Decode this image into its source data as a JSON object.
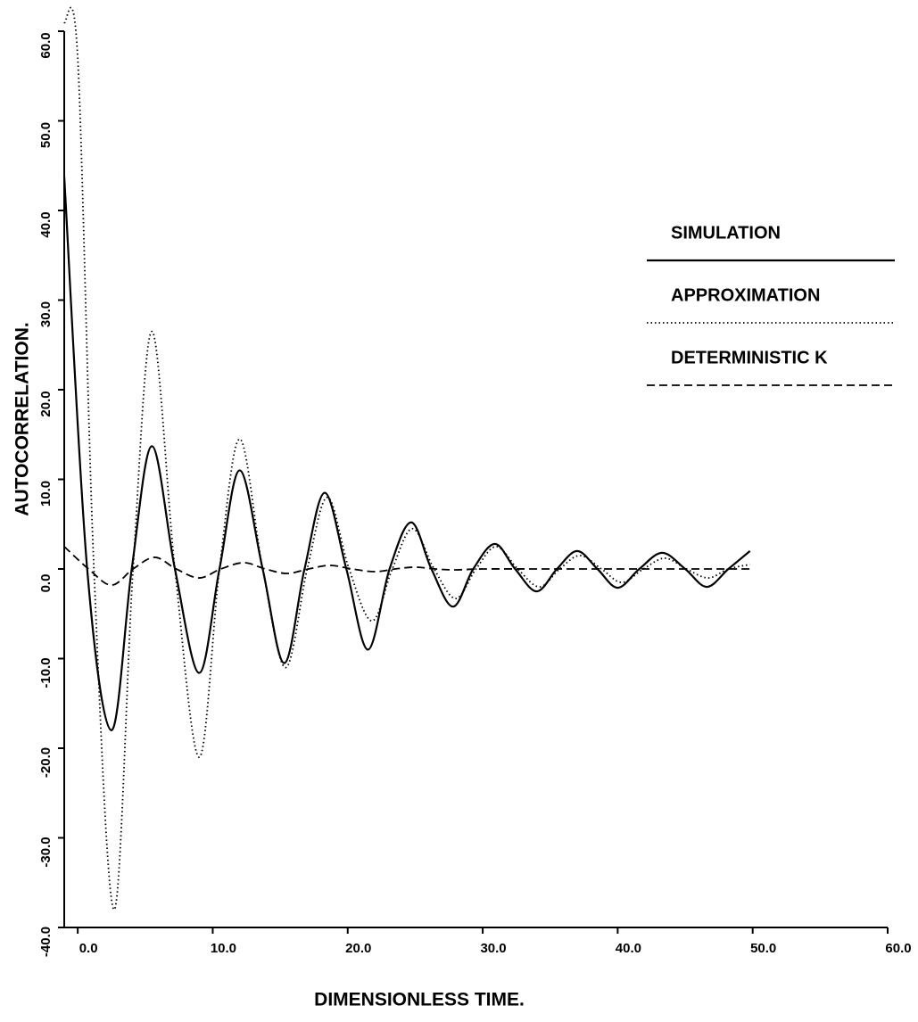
{
  "chart_data": {
    "type": "line",
    "xlabel": "DIMENSIONLESS TIME.",
    "ylabel": "AUTOCORRELATION.",
    "xlim": [
      -1,
      60
    ],
    "xticks": [
      {
        "value": 0,
        "label": "0.0"
      },
      {
        "value": 10,
        "label": "10.0"
      },
      {
        "value": 20,
        "label": "20.0"
      },
      {
        "value": 30,
        "label": "30.0"
      },
      {
        "value": 40,
        "label": "40.0"
      },
      {
        "value": 50,
        "label": "50.0"
      },
      {
        "value": 60,
        "label": "60.0"
      }
    ],
    "ylim": [
      -40,
      60
    ],
    "yticks": [
      {
        "value": -40,
        "label": "-40.0"
      },
      {
        "value": -30,
        "label": "-30.0"
      },
      {
        "value": -20,
        "label": "-20.0"
      },
      {
        "value": -10,
        "label": "-10.0"
      },
      {
        "value": 0,
        "label": "0.0"
      },
      {
        "value": 10,
        "label": "10.0"
      },
      {
        "value": 20,
        "label": "20.0"
      },
      {
        "value": 30,
        "label": "30.0"
      },
      {
        "value": 40,
        "label": "40.0"
      },
      {
        "value": 50,
        "label": "50.0"
      },
      {
        "value": 60,
        "label": "60.0"
      }
    ],
    "grid": false,
    "legend": "right",
    "series": [
      {
        "name": "SIMULATION",
        "color": "#000000",
        "line_style": "solid",
        "x": [
          -1,
          0.7,
          2.5,
          4,
          5.5,
          7.2,
          9,
          10.5,
          12,
          13.7,
          15.3,
          16.8,
          18.3,
          19.9,
          21.5,
          23.1,
          24.7,
          26.2,
          27.8,
          29.3,
          30.9,
          32.4,
          34,
          35.5,
          37,
          38.5,
          40,
          41.6,
          43.3,
          45,
          46.6,
          48.2,
          49.8
        ],
        "values": [
          43.8,
          0,
          -18,
          0,
          13.7,
          0,
          -11.6,
          0,
          11,
          0,
          -10.5,
          0,
          8.5,
          0,
          -9,
          0,
          5.2,
          0,
          -4.2,
          0,
          2.8,
          0,
          -2.5,
          0,
          2,
          0,
          -2.1,
          0,
          1.8,
          0,
          -2,
          0,
          2
        ]
      },
      {
        "name": "APPROXIMATION",
        "color": "#000000",
        "line_style": "dotted",
        "x": [
          -1,
          0,
          1.2,
          2.7,
          4.1,
          5.5,
          7.2,
          9,
          10.5,
          12,
          13.7,
          15.4,
          17,
          18.5,
          20.1,
          21.8,
          23.3,
          24.8,
          26.4,
          28,
          29.5,
          31,
          32.6,
          34.2,
          35.7,
          37.2,
          38.8,
          40.3,
          41.9,
          43.5,
          45.1,
          46.7,
          48.2,
          49.8
        ],
        "values": [
          61,
          57,
          0,
          -38,
          0,
          26.5,
          0,
          -21,
          0,
          14.5,
          0,
          -11,
          0,
          8,
          0,
          -5.8,
          0,
          4.5,
          0,
          -3.3,
          0,
          2.5,
          0,
          -2,
          0,
          1.5,
          0,
          -1.5,
          0,
          1.2,
          0,
          -1,
          0,
          0.5
        ]
      },
      {
        "name": "DETERMINISTIC K",
        "color": "#000000",
        "line_style": "dashed",
        "x": [
          -1,
          0.8,
          2.5,
          4.1,
          5.7,
          7.3,
          9,
          10.6,
          12.3,
          13.9,
          15.5,
          17.1,
          18.7,
          20.3,
          22,
          23.5,
          25,
          26.5,
          28,
          30,
          35,
          40,
          45,
          50
        ],
        "values": [
          2.5,
          0,
          -1.8,
          0,
          1.3,
          0,
          -1,
          0,
          0.7,
          0,
          -0.5,
          0,
          0.4,
          0,
          -0.3,
          0,
          0.2,
          0,
          -0.1,
          0,
          0,
          0,
          0,
          0
        ]
      }
    ]
  }
}
